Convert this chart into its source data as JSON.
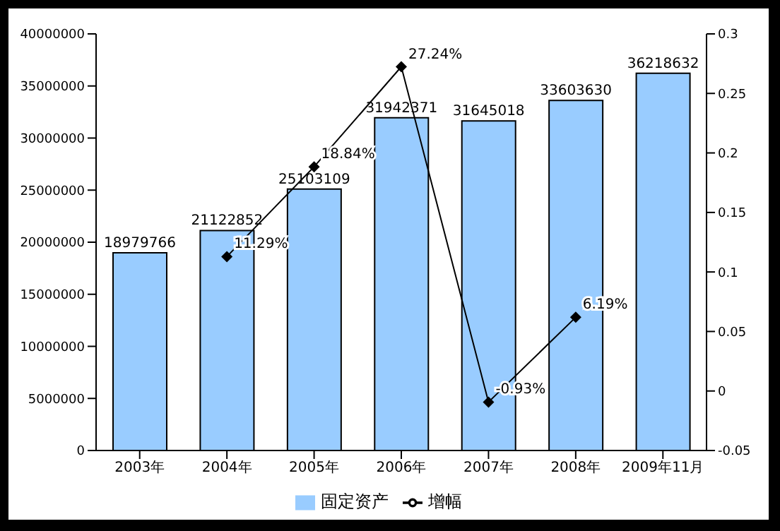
{
  "chart_data": {
    "type": "bar",
    "categories": [
      "2003年",
      "2004年",
      "2005年",
      "2006年",
      "2007年",
      "2008年",
      "2009年11月"
    ],
    "series": [
      {
        "name": "固定资产",
        "color": "#99ccff",
        "values": [
          18979766,
          21122852,
          25103109,
          31942371,
          31645018,
          33603630,
          36218632
        ]
      },
      {
        "name": "增幅",
        "type": "line",
        "axis": "y2",
        "color": "#000000",
        "values": [
          null,
          0.1129,
          0.1884,
          0.2724,
          -0.0093,
          0.0619,
          null
        ],
        "value_labels": [
          null,
          "11.29%",
          "18.84%",
          "27.24%",
          "-0.93%",
          "6.19%",
          null
        ]
      }
    ],
    "ylim": [
      0,
      40000000
    ],
    "yticks": [
      0,
      5000000,
      10000000,
      15000000,
      20000000,
      25000000,
      30000000,
      35000000,
      40000000
    ],
    "y2lim": [
      -0.05,
      0.3
    ],
    "y2ticks": [
      -0.05,
      0,
      0.05,
      0.1,
      0.15,
      0.2,
      0.25,
      0.3
    ],
    "data_labels": true,
    "grid": false,
    "legend": "bottom",
    "marker": "diamond",
    "line_style": "solid"
  }
}
